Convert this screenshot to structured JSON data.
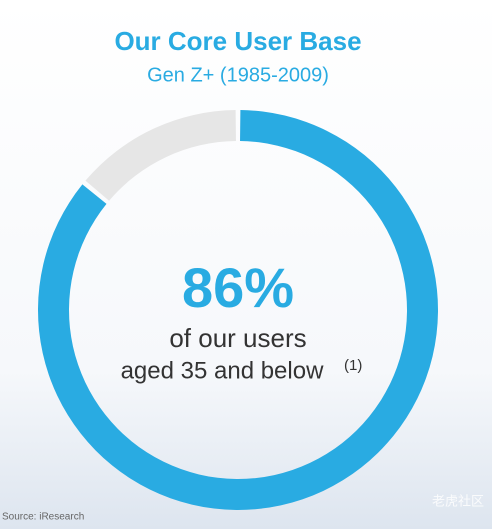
{
  "chart_data": {
    "type": "donut",
    "title": "Our Core User Base",
    "subtitle": "Gen Z+ (1985-2009)",
    "categories": [
      null,
      null
    ],
    "values": [
      86,
      14
    ],
    "value_labels": [
      "86%",
      null
    ],
    "colors": [
      "#29abe2",
      "#e6e6e6"
    ],
    "annotation": [
      "of our users",
      "aged 35 and below"
    ],
    "footnote_marker": "(1)",
    "source": "Source: iResearch"
  },
  "watermark": "老虎社区"
}
